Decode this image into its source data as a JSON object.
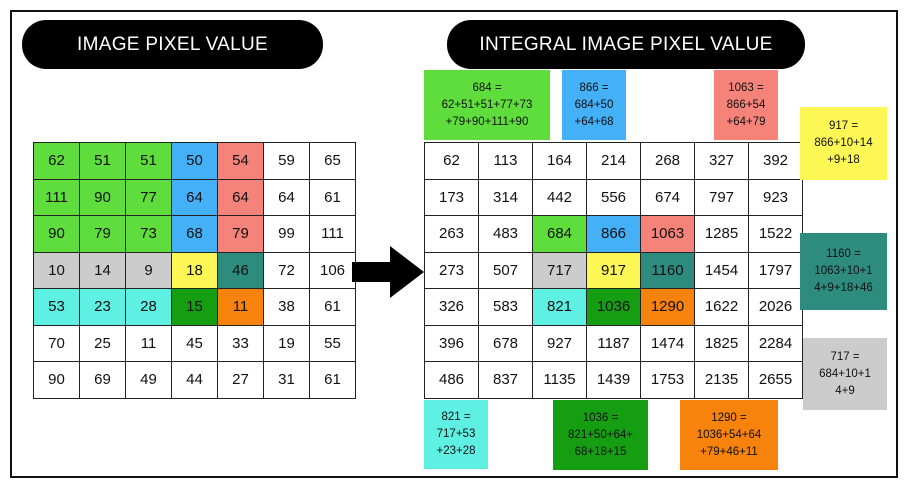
{
  "titles": {
    "left": "IMAGE PIXEL VALUE",
    "right": "INTEGRAL IMAGE PIXEL VALUE"
  },
  "colors": {
    "green": "#5FDD3C",
    "blue": "#44B0F8",
    "red": "#F5837A",
    "gray": "#CCCCCC",
    "yellow": "#FCF755",
    "teal": "#2E8C7E",
    "cyan": "#5EF1E3",
    "darkgreen": "#169E13",
    "orange": "#F7820C",
    "white": "#FFFFFF"
  },
  "pixel_grid": [
    [
      62,
      51,
      51,
      50,
      54,
      59,
      65
    ],
    [
      111,
      90,
      77,
      64,
      64,
      64,
      61
    ],
    [
      90,
      79,
      73,
      68,
      79,
      99,
      111
    ],
    [
      10,
      14,
      9,
      18,
      46,
      72,
      106
    ],
    [
      53,
      23,
      28,
      15,
      11,
      38,
      61
    ],
    [
      70,
      25,
      11,
      45,
      33,
      19,
      55
    ],
    [
      90,
      69,
      49,
      44,
      27,
      31,
      61
    ]
  ],
  "pixel_colors": [
    [
      "green",
      "green",
      "green",
      "blue",
      "red",
      "white",
      "white"
    ],
    [
      "green",
      "green",
      "green",
      "blue",
      "red",
      "white",
      "white"
    ],
    [
      "green",
      "green",
      "green",
      "blue",
      "red",
      "white",
      "white"
    ],
    [
      "gray",
      "gray",
      "gray",
      "yellow",
      "teal",
      "white",
      "white"
    ],
    [
      "cyan",
      "cyan",
      "cyan",
      "darkgreen",
      "orange",
      "white",
      "white"
    ],
    [
      "white",
      "white",
      "white",
      "white",
      "white",
      "white",
      "white"
    ],
    [
      "white",
      "white",
      "white",
      "white",
      "white",
      "white",
      "white"
    ]
  ],
  "integral_grid": [
    [
      62,
      113,
      164,
      214,
      268,
      327,
      392
    ],
    [
      173,
      314,
      442,
      556,
      674,
      797,
      923
    ],
    [
      263,
      483,
      684,
      866,
      1063,
      1285,
      1522
    ],
    [
      273,
      507,
      717,
      917,
      1160,
      1454,
      1797
    ],
    [
      326,
      583,
      821,
      1036,
      1290,
      1622,
      2026
    ],
    [
      396,
      678,
      927,
      1187,
      1474,
      1825,
      2284
    ],
    [
      486,
      837,
      1135,
      1439,
      1753,
      2135,
      2655
    ]
  ],
  "integral_colors": [
    [
      "white",
      "white",
      "white",
      "white",
      "white",
      "white",
      "white"
    ],
    [
      "white",
      "white",
      "white",
      "white",
      "white",
      "white",
      "white"
    ],
    [
      "white",
      "white",
      "green",
      "blue",
      "red",
      "white",
      "white"
    ],
    [
      "white",
      "white",
      "gray",
      "yellow",
      "teal",
      "white",
      "white"
    ],
    [
      "white",
      "white",
      "cyan",
      "darkgreen",
      "orange",
      "white",
      "white"
    ],
    [
      "white",
      "white",
      "white",
      "white",
      "white",
      "white",
      "white"
    ],
    [
      "white",
      "white",
      "white",
      "white",
      "white",
      "white",
      "white"
    ]
  ],
  "notes": {
    "n684": "684 =\n62+51+51+77+73\n+79+90+111+90",
    "n866": "866 =\n684+50\n+64+68",
    "n1063": "1063 =\n866+54\n+64+79",
    "n917": "917 =\n866+10+14\n+9+18",
    "n1160": "1160 =\n1063+10+1\n4+9+18+46",
    "n717": "717 =\n684+10+1\n4+9",
    "n821": "821 =\n717+53\n+23+28",
    "n1036": "1036 =\n821+50+64+\n68+18+15",
    "n1290": "1290 =\n1036+54+64\n+79+46+11"
  }
}
